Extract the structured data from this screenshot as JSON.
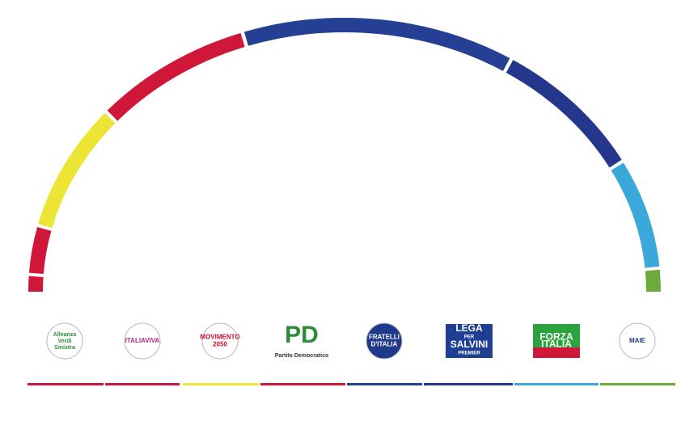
{
  "chart_data": {
    "type": "parliament",
    "values": [
      8,
      23,
      60,
      67,
      113,
      66,
      52,
      11
    ],
    "colors": [
      "#d0173a",
      "#d0173a",
      "#ece535",
      "#d0173a",
      "#253f95",
      "#24378c",
      "#3aa8d8",
      "#6aab3c"
    ],
    "logo_lines": [
      [
        "Alleanza",
        "Verdi",
        "Sinistra"
      ],
      [
        "ITALIAVIVA"
      ],
      [
        "MOVIMENTO",
        "2050"
      ],
      [
        "PD",
        "Partito Democratico"
      ],
      [
        "FRATELLI",
        "D'ITALIA"
      ],
      [
        "LEGA",
        "PER",
        "SALVINI",
        "PREMIER"
      ],
      [
        "FORZA",
        "ITALIA"
      ],
      [
        "MAIE"
      ]
    ]
  }
}
